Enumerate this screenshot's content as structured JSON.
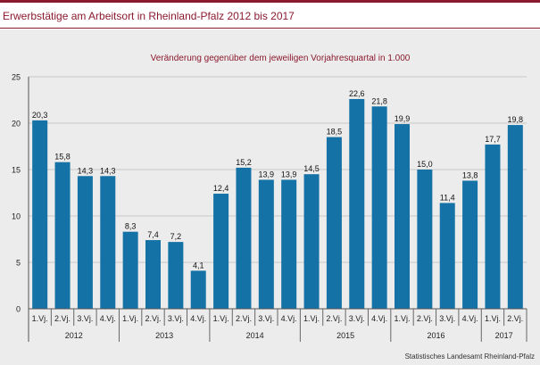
{
  "header": {
    "title": "Erwerbstätige am Arbeitsort in Rheinland-Pfalz 2012 bis 2017"
  },
  "colors": {
    "accent": "#8b1a2e",
    "bar": "#1472a6",
    "panel": "#ececec",
    "grid": "#c8c8c8"
  },
  "source": "Statistisches Landesamt Rheinland-Pfalz",
  "chart_data": {
    "type": "bar",
    "title": "",
    "subtitle": "Veränderung gegenüber dem jeweiligen Vorjahresquartal in 1.000",
    "xlabel": "",
    "ylabel": "",
    "ylim": [
      0,
      25
    ],
    "yticks": [
      0,
      5,
      10,
      15,
      20,
      25
    ],
    "grid": true,
    "legend": "none",
    "categories": [
      "1.Vj.",
      "2.Vj.",
      "3.Vj.",
      "4.Vj.",
      "1.Vj.",
      "2.Vj.",
      "3.Vj.",
      "4.Vj.",
      "1.Vj.",
      "2.Vj.",
      "3.Vj.",
      "4.Vj.",
      "1.Vj.",
      "2.Vj.",
      "3.Vj.",
      "4.Vj.",
      "1.Vj.",
      "2.Vj.",
      "3.Vj.",
      "4.Vj.",
      "1.Vj.",
      "2.Vj."
    ],
    "values": [
      20.3,
      15.8,
      14.3,
      14.3,
      8.3,
      7.4,
      7.2,
      4.1,
      12.4,
      15.2,
      13.9,
      13.9,
      14.5,
      18.5,
      22.6,
      21.8,
      19.9,
      15.0,
      11.4,
      13.8,
      17.7,
      19.8
    ],
    "value_labels": [
      "20,3",
      "15,8",
      "14,3",
      "14,3",
      "8,3",
      "7,4",
      "7,2",
      "4,1",
      "12,4",
      "15,2",
      "13,9",
      "13,9",
      "14,5",
      "18,5",
      "22,6",
      "21,8",
      "19,9",
      "15,0",
      "11,4",
      "13,8",
      "17,7",
      "19,8"
    ],
    "groups": [
      {
        "label": "2012",
        "count": 4
      },
      {
        "label": "2013",
        "count": 4
      },
      {
        "label": "2014",
        "count": 4
      },
      {
        "label": "2015",
        "count": 4
      },
      {
        "label": "2016",
        "count": 4
      },
      {
        "label": "2017",
        "count": 2
      }
    ]
  }
}
